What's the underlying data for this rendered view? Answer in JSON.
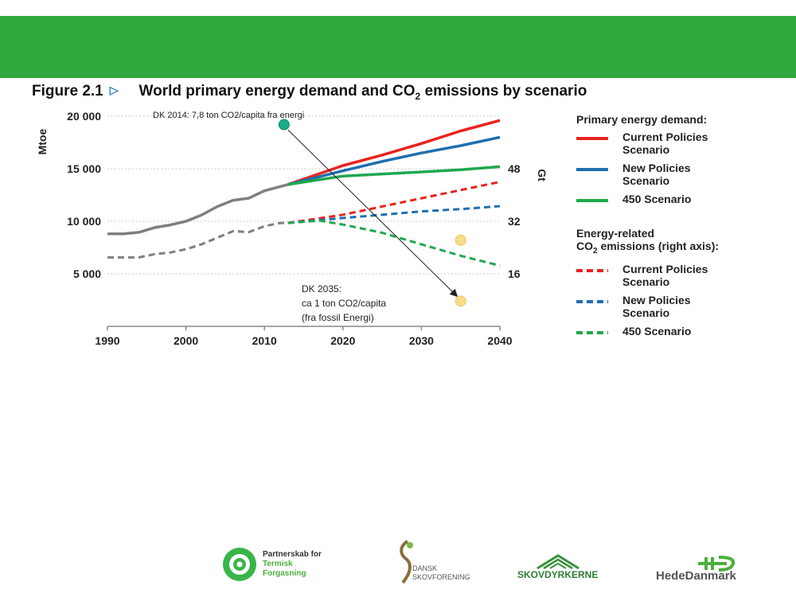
{
  "banner": {
    "color": "#2fa83c"
  },
  "figure": {
    "label": "Figure 2.1",
    "title_pre": "World primary energy demand and CO",
    "title_sub": "2",
    "title_post": " emissions by scenario"
  },
  "legend": {
    "energy_heading": "Primary energy demand:",
    "co2_heading_line1": "Energy-related",
    "co2_heading_pre": "CO",
    "co2_heading_sub": "2",
    "co2_heading_post": " emissions (right axis):",
    "energy_items": [
      {
        "line1": "Current Policies",
        "line2": "Scenario",
        "color": "#e8231f"
      },
      {
        "line1": "New Policies",
        "line2": "Scenario",
        "color": "#1f6fb0"
      },
      {
        "line1": "450 Scenario",
        "line2": "",
        "color": "#1fa84f"
      }
    ],
    "co2_items": [
      {
        "line1": "Current Policies",
        "line2": "Scenario",
        "color": "#e8231f"
      },
      {
        "line1": "New Policies",
        "line2": "Scenario",
        "color": "#1f6fb0"
      },
      {
        "line1": "450 Scenario",
        "line2": "",
        "color": "#1fa84f"
      }
    ]
  },
  "annotations": {
    "dk2014": "DK 2014: 7,8 ton CO2/capita fra energi",
    "dk2035_line1": "DK 2035:",
    "dk2035_line2": "ca 1 ton CO2/capita",
    "dk2035_line3": "(fra fossil Energi)"
  },
  "chart_data": {
    "type": "line",
    "title": "World primary energy demand and CO2 emissions by scenario",
    "xlabel": "",
    "ylabel": "Mtoe",
    "ylabel_right": "Gt",
    "xlim": [
      1990,
      2040
    ],
    "ylim": [
      0,
      20000
    ],
    "ylim_right": [
      0,
      64
    ],
    "x_ticks": [
      "1990",
      "2000",
      "2010",
      "2020",
      "2030",
      "2040"
    ],
    "y_ticks": [
      "5 000",
      "10 000",
      "15 000",
      "20 000"
    ],
    "y_ticks_right": [
      "16",
      "32",
      "48"
    ],
    "grid": "horizontal dotted",
    "historical": {
      "energy": {
        "x": [
          1990,
          1992,
          1994,
          1996,
          1998,
          2000,
          2002,
          2004,
          2006,
          2008,
          2010,
          2012,
          2013
        ],
        "y": [
          8800,
          8800,
          8950,
          9400,
          9650,
          10000,
          10600,
          11400,
          12000,
          12200,
          12900,
          13300,
          13500
        ],
        "color": "#7f7f7f"
      },
      "co2": {
        "x": [
          1990,
          1992,
          1994,
          1996,
          1998,
          2000,
          2002,
          2004,
          2006,
          2008,
          2010,
          2012,
          2013
        ],
        "y": [
          21,
          21,
          21,
          22,
          22.5,
          23.5,
          25,
          27,
          29,
          28.7,
          30.5,
          31.5,
          31.5
        ],
        "color": "#7f7f7f"
      }
    },
    "series": [
      {
        "name": "Current Policies Scenario",
        "group": "Primary energy demand",
        "axis": "left",
        "dash": false,
        "color": "#e8231f",
        "x": [
          2013,
          2020,
          2025,
          2030,
          2035,
          2040
        ],
        "y": [
          13500,
          15300,
          16300,
          17400,
          18600,
          19600
        ]
      },
      {
        "name": "New Policies Scenario",
        "group": "Primary energy demand",
        "axis": "left",
        "dash": false,
        "color": "#1f6fb0",
        "x": [
          2013,
          2020,
          2025,
          2030,
          2035,
          2040
        ],
        "y": [
          13500,
          14800,
          15700,
          16500,
          17200,
          18000
        ]
      },
      {
        "name": "450 Scenario",
        "group": "Primary energy demand",
        "axis": "left",
        "dash": false,
        "color": "#1fa84f",
        "x": [
          2013,
          2020,
          2025,
          2030,
          2035,
          2040
        ],
        "y": [
          13500,
          14300,
          14500,
          14700,
          14900,
          15200
        ]
      },
      {
        "name": "Current Policies Scenario",
        "group": "Energy-related CO2 emissions (right axis)",
        "axis": "right",
        "dash": true,
        "color": "#e8231f",
        "x": [
          2013,
          2020,
          2025,
          2030,
          2035,
          2040
        ],
        "y": [
          31.5,
          34,
          36.5,
          39,
          41.5,
          44
        ]
      },
      {
        "name": "New Policies Scenario",
        "group": "Energy-related CO2 emissions (right axis)",
        "axis": "right",
        "dash": true,
        "color": "#1f6fb0",
        "x": [
          2013,
          2020,
          2025,
          2030,
          2035,
          2040
        ],
        "y": [
          31.5,
          33,
          34,
          35,
          35.7,
          36.6
        ]
      },
      {
        "name": "450 Scenario",
        "group": "Energy-related CO2 emissions (right axis)",
        "axis": "right",
        "dash": true,
        "color": "#1fa84f",
        "x": [
          2013,
          2017,
          2020,
          2025,
          2030,
          2035,
          2040
        ],
        "y": [
          31.5,
          32.2,
          31,
          28.5,
          25,
          21.5,
          18.5
        ]
      }
    ],
    "markers": [
      {
        "label": "DK 2014",
        "x": 2012.5,
        "y": 19200,
        "color": "#1aab8a"
      },
      {
        "label": "DK 2035 (a)",
        "x": 2035,
        "y": 8200,
        "color": "#f7dd8a"
      },
      {
        "label": "DK 2035 (b)",
        "x": 2035,
        "y": 2400,
        "color": "#f7dd8a"
      }
    ],
    "arrow": {
      "from": [
        2013,
        18700
      ],
      "to": [
        2034.5,
        2900
      ]
    }
  },
  "logos": {
    "termisk_line1": "Partnerskab for",
    "termisk_line2": "Termisk",
    "termisk_line3": "Forgasning",
    "dansk_line1": "DANSK",
    "dansk_line2": "SKOVFORENING",
    "skovdyrkerne": "SKOVDYRKERNE",
    "hededanmark": "HedeDanmark"
  }
}
